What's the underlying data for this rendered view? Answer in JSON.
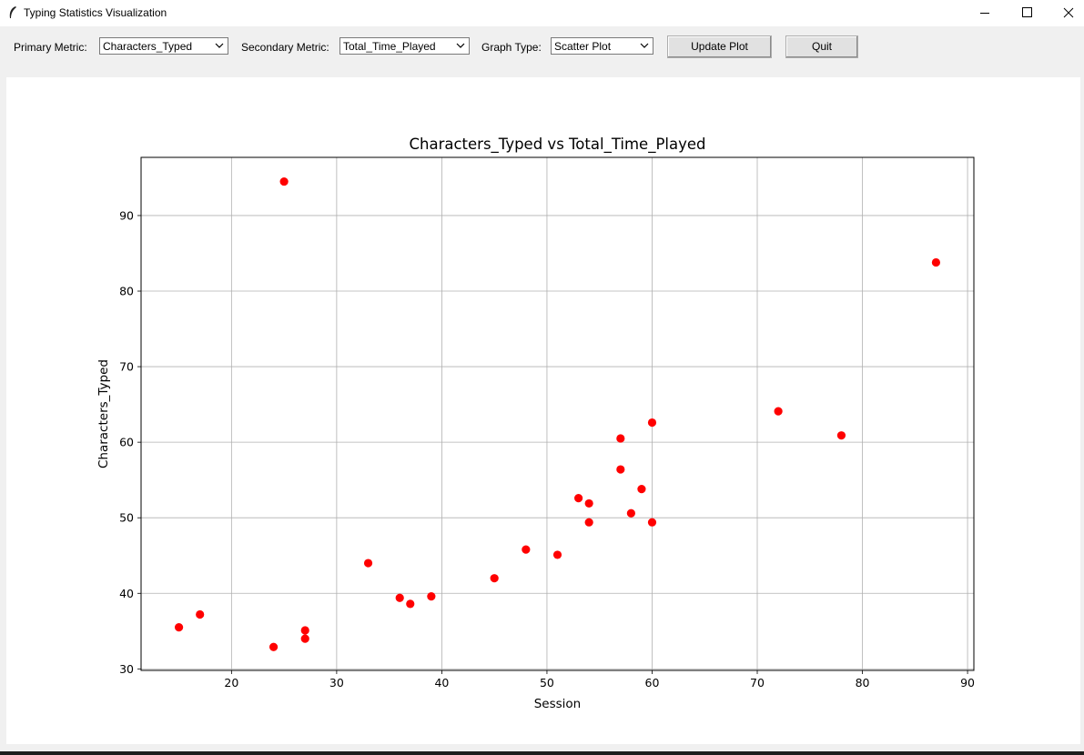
{
  "window": {
    "title": "Typing Statistics Visualization",
    "icon": "feather-icon"
  },
  "toolbar": {
    "primary_label": "Primary Metric:",
    "primary_value": "Characters_Typed",
    "secondary_label": "Secondary Metric:",
    "secondary_value": "Total_Time_Played",
    "graph_type_label": "Graph Type:",
    "graph_type_value": "Scatter Plot",
    "update_label": "Update Plot",
    "quit_label": "Quit"
  },
  "chart_data": {
    "type": "scatter",
    "title": "Characters_Typed vs Total_Time_Played",
    "xlabel": "Session",
    "ylabel": "Characters_Typed",
    "xlim": [
      11.4,
      90.6
    ],
    "ylim": [
      29.8,
      97.7
    ],
    "xticks": [
      20,
      30,
      40,
      50,
      60,
      70,
      80,
      90
    ],
    "yticks": [
      30,
      40,
      50,
      60,
      70,
      80,
      90
    ],
    "grid": true,
    "marker_color": "#ff0000",
    "points": [
      {
        "x": 15,
        "y": 35.5
      },
      {
        "x": 17,
        "y": 37.2
      },
      {
        "x": 24,
        "y": 32.9
      },
      {
        "x": 25,
        "y": 94.5
      },
      {
        "x": 27,
        "y": 35.1
      },
      {
        "x": 27,
        "y": 34.0
      },
      {
        "x": 33,
        "y": 44.0
      },
      {
        "x": 36,
        "y": 39.4
      },
      {
        "x": 37,
        "y": 38.6
      },
      {
        "x": 39,
        "y": 39.6
      },
      {
        "x": 45,
        "y": 42.0
      },
      {
        "x": 48,
        "y": 45.8
      },
      {
        "x": 51,
        "y": 45.1
      },
      {
        "x": 53,
        "y": 52.6
      },
      {
        "x": 54,
        "y": 51.9
      },
      {
        "x": 54,
        "y": 49.4
      },
      {
        "x": 57,
        "y": 60.5
      },
      {
        "x": 57,
        "y": 56.4
      },
      {
        "x": 58,
        "y": 50.6
      },
      {
        "x": 59,
        "y": 53.8
      },
      {
        "x": 60,
        "y": 62.6
      },
      {
        "x": 60,
        "y": 49.4
      },
      {
        "x": 72,
        "y": 64.1
      },
      {
        "x": 78,
        "y": 60.9
      },
      {
        "x": 87,
        "y": 83.8
      }
    ]
  }
}
